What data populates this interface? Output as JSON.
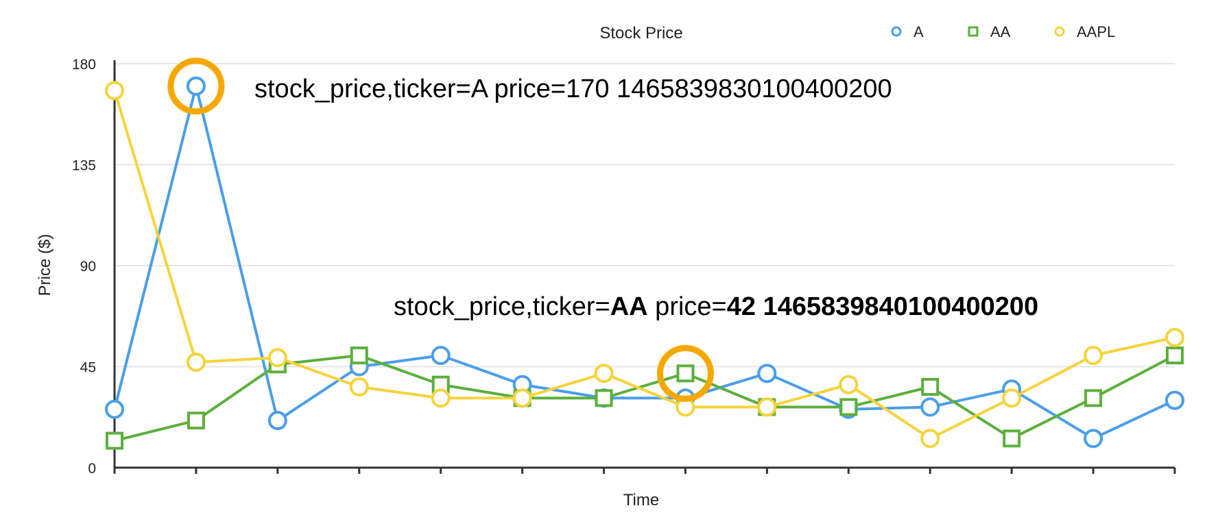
{
  "chart_data": {
    "type": "line",
    "title": "Stock Price",
    "xlabel": "Time",
    "ylabel": "Price ($)",
    "ylim": [
      0,
      180
    ],
    "yticks": [
      0,
      45,
      90,
      135,
      180
    ],
    "grid": true,
    "legend_position": "top-right",
    "x": [
      1,
      2,
      3,
      4,
      5,
      6,
      7,
      8,
      9,
      10,
      11,
      12,
      13,
      14
    ],
    "series": [
      {
        "name": "A",
        "marker": "circle",
        "color": "#4a9eea",
        "values": [
          26,
          170,
          21,
          45,
          50,
          37,
          31,
          31,
          42,
          26,
          27,
          35,
          13,
          30
        ]
      },
      {
        "name": "AA",
        "marker": "square",
        "color": "#5caf3c",
        "values": [
          12,
          21,
          46,
          50,
          37,
          31,
          31,
          42,
          27,
          27,
          36,
          13,
          31,
          50
        ]
      },
      {
        "name": "AAPL",
        "marker": "circle",
        "color": "#f5d33b",
        "values": [
          168,
          47,
          49,
          36,
          31,
          31,
          42,
          27,
          27,
          37,
          13,
          31,
          50,
          58
        ]
      }
    ],
    "annotations": [
      {
        "parts": [
          {
            "text": "stock_price,ticker=A price=170 1465839830100400200",
            "bold": false
          }
        ],
        "series": "A",
        "point_index": 1,
        "highlight_color": "#f5a800"
      },
      {
        "parts": [
          {
            "text": "stock_price,ticker=",
            "bold": false
          },
          {
            "text": "AA",
            "bold": true
          },
          {
            "text": " price=",
            "bold": false
          },
          {
            "text": "42 1465839840100400200",
            "bold": true
          }
        ],
        "series": "AA",
        "point_index": 7,
        "highlight_color": "#f5a800"
      }
    ]
  }
}
